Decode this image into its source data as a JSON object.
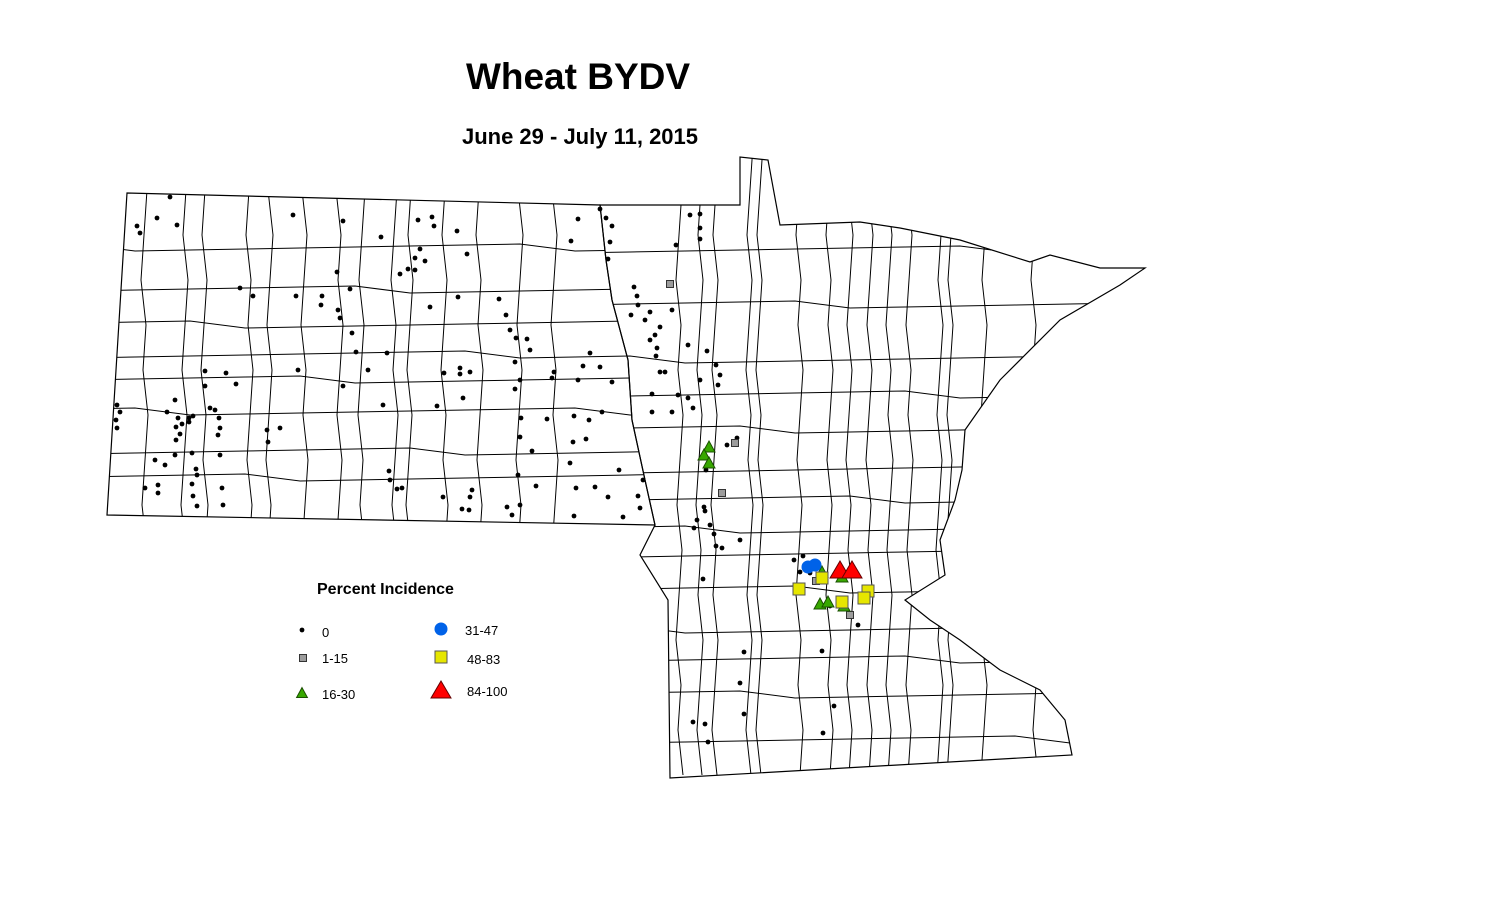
{
  "title": "Wheat BYDV",
  "subtitle": "June 29 - July 11, 2015",
  "legend": {
    "title": "Percent Incidence",
    "items": [
      {
        "label": "0",
        "symbol": "dot",
        "color": "#000000"
      },
      {
        "label": "1-15",
        "symbol": "square",
        "color": "#9c9c9c"
      },
      {
        "label": "16-30",
        "symbol": "triangle",
        "color": "#38a800"
      },
      {
        "label": "31-47",
        "symbol": "circle",
        "color": "#0062e8"
      },
      {
        "label": "48-83",
        "symbol": "square",
        "color": "#e6e600"
      },
      {
        "label": "84-100",
        "symbol": "triangle",
        "color": "#ff0000"
      }
    ]
  },
  "map": {
    "regions": [
      "North Dakota",
      "Minnesota"
    ],
    "boundaries": "counties"
  }
}
